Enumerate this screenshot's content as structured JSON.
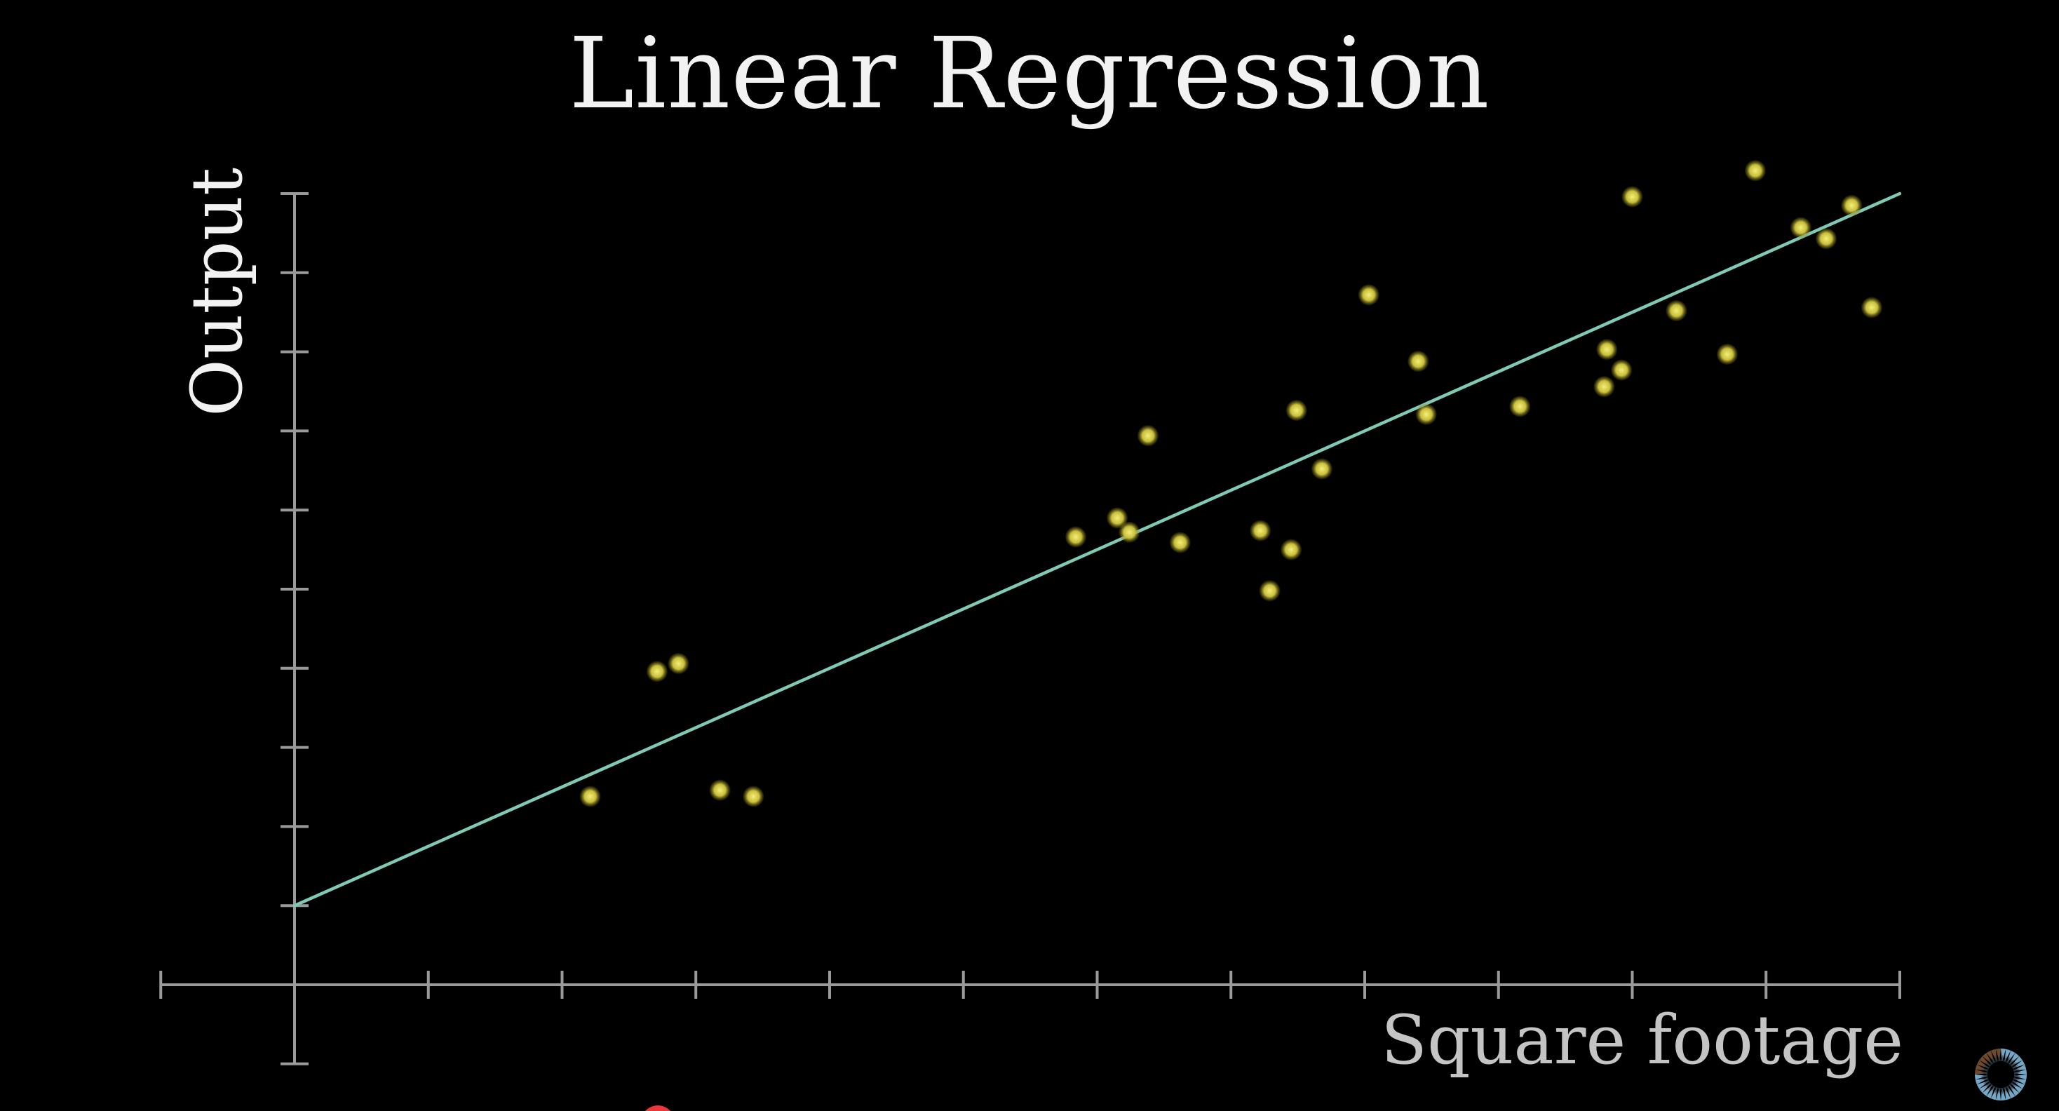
{
  "title": "Linear Regression",
  "axes": {
    "x_label": "Square footage",
    "y_label": "Output"
  },
  "colors": {
    "background": "#000000",
    "axis": "#9a9a9a",
    "fit_line": "#7fc9b5",
    "point_center": "#f4ee7a",
    "point_edge": "#7d7418",
    "title_text": "#f2f2f2",
    "x_label_text": "#c4c4c4",
    "logo_blue": "#76a6c6",
    "logo_brown": "#6e4a2c",
    "scrubber_red": "#e8383d"
  },
  "icons": {
    "logo": "pi-creature-eye-icon",
    "scrubber": "playhead-dot-icon"
  },
  "chart_data": {
    "type": "scatter",
    "title": "Linear Regression",
    "xlabel": "Square footage",
    "ylabel": "Output",
    "xlim": [
      -1,
      12
    ],
    "ylim": [
      -1,
      10
    ],
    "x_ticks": [
      -1,
      0,
      1,
      2,
      3,
      4,
      5,
      6,
      7,
      8,
      9,
      10,
      11,
      12
    ],
    "y_ticks": [
      -1,
      1,
      2,
      3,
      4,
      5,
      6,
      7,
      8,
      9,
      10
    ],
    "tick_labels_shown": false,
    "grid": false,
    "legend": null,
    "points": [
      {
        "x": 2.21,
        "y": 2.38
      },
      {
        "x": 2.71,
        "y": 3.96
      },
      {
        "x": 2.87,
        "y": 4.06
      },
      {
        "x": 3.18,
        "y": 2.46
      },
      {
        "x": 3.43,
        "y": 2.38
      },
      {
        "x": 5.84,
        "y": 5.66
      },
      {
        "x": 6.15,
        "y": 5.9
      },
      {
        "x": 6.24,
        "y": 5.72
      },
      {
        "x": 6.38,
        "y": 6.94
      },
      {
        "x": 6.62,
        "y": 5.59
      },
      {
        "x": 7.22,
        "y": 5.74
      },
      {
        "x": 7.45,
        "y": 5.5
      },
      {
        "x": 7.29,
        "y": 4.98
      },
      {
        "x": 7.68,
        "y": 6.52
      },
      {
        "x": 7.49,
        "y": 7.26
      },
      {
        "x": 8.03,
        "y": 8.72
      },
      {
        "x": 8.4,
        "y": 7.88
      },
      {
        "x": 8.46,
        "y": 7.21
      },
      {
        "x": 9.16,
        "y": 7.31
      },
      {
        "x": 9.81,
        "y": 8.03
      },
      {
        "x": 9.92,
        "y": 7.77
      },
      {
        "x": 9.79,
        "y": 7.56
      },
      {
        "x": 10.33,
        "y": 8.52
      },
      {
        "x": 10.0,
        "y": 9.96
      },
      {
        "x": 10.71,
        "y": 7.97
      },
      {
        "x": 10.92,
        "y": 10.29
      },
      {
        "x": 11.26,
        "y": 9.57
      },
      {
        "x": 11.45,
        "y": 9.43
      },
      {
        "x": 11.64,
        "y": 9.85
      },
      {
        "x": 11.79,
        "y": 8.56
      }
    ],
    "fit_line": {
      "intercept": 1.0,
      "slope": 0.75,
      "x_range": [
        0,
        12
      ]
    }
  }
}
